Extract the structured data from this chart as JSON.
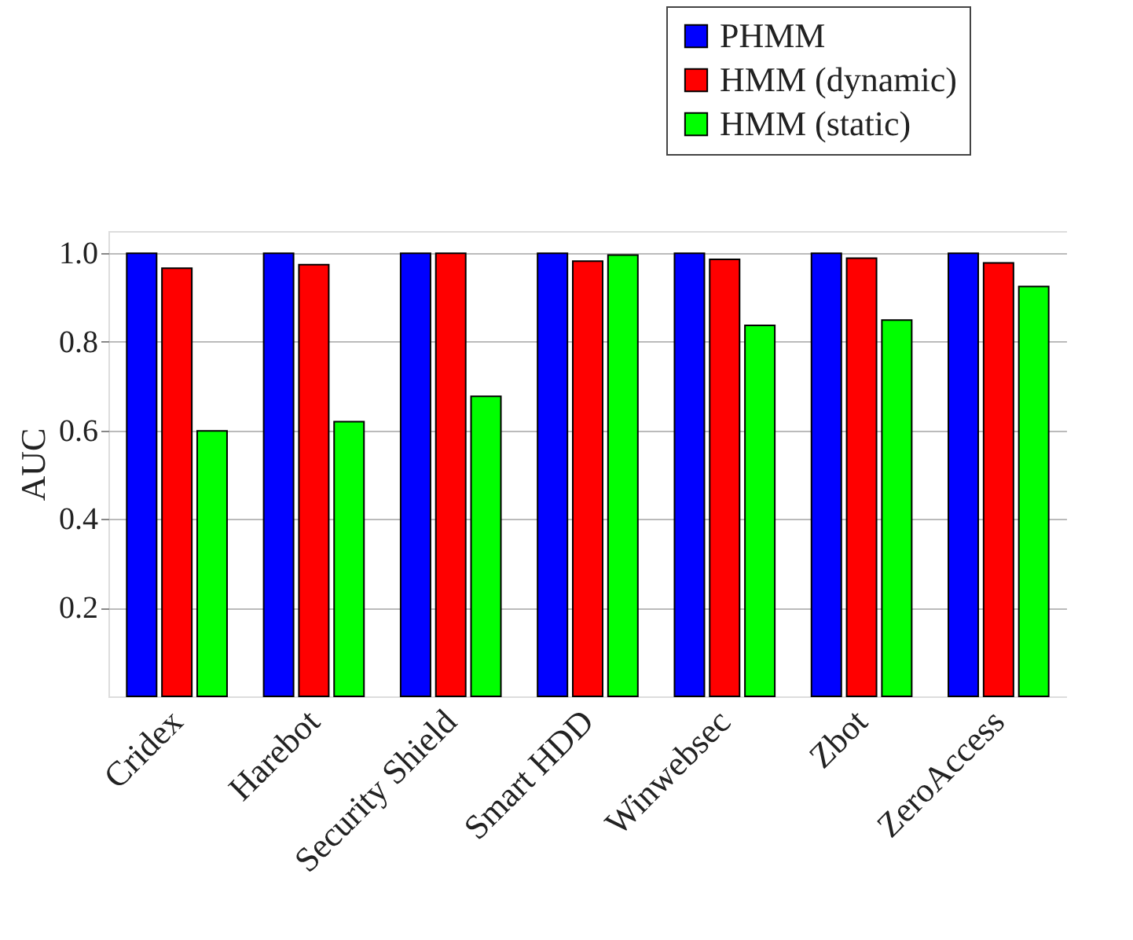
{
  "chart_data": {
    "type": "bar",
    "ylabel": "AUC",
    "categories": [
      "Cridex",
      "Harebot",
      "Security Shield",
      "Smart HDD",
      "Winwebsec",
      "Zbot",
      "ZeroAccess"
    ],
    "series": [
      {
        "name": "PHMM",
        "color": "#0000ff",
        "values": [
          1.0,
          1.0,
          1.0,
          1.0,
          1.0,
          1.0,
          1.0
        ]
      },
      {
        "name": "HMM (dynamic)",
        "color": "#ff0000",
        "values": [
          0.966,
          0.974,
          1.0,
          0.982,
          0.986,
          0.989,
          0.978
        ]
      },
      {
        "name": "HMM (static)",
        "color": "#00ff00",
        "values": [
          0.599,
          0.62,
          0.677,
          0.996,
          0.837,
          0.849,
          0.925
        ]
      }
    ],
    "ylim": [
      0,
      1.05
    ],
    "yticks": [
      0.2,
      0.4,
      0.6,
      0.8,
      {
        "value": 1,
        "label": "1.0"
      }
    ],
    "grid": "y",
    "legend": "top right"
  }
}
